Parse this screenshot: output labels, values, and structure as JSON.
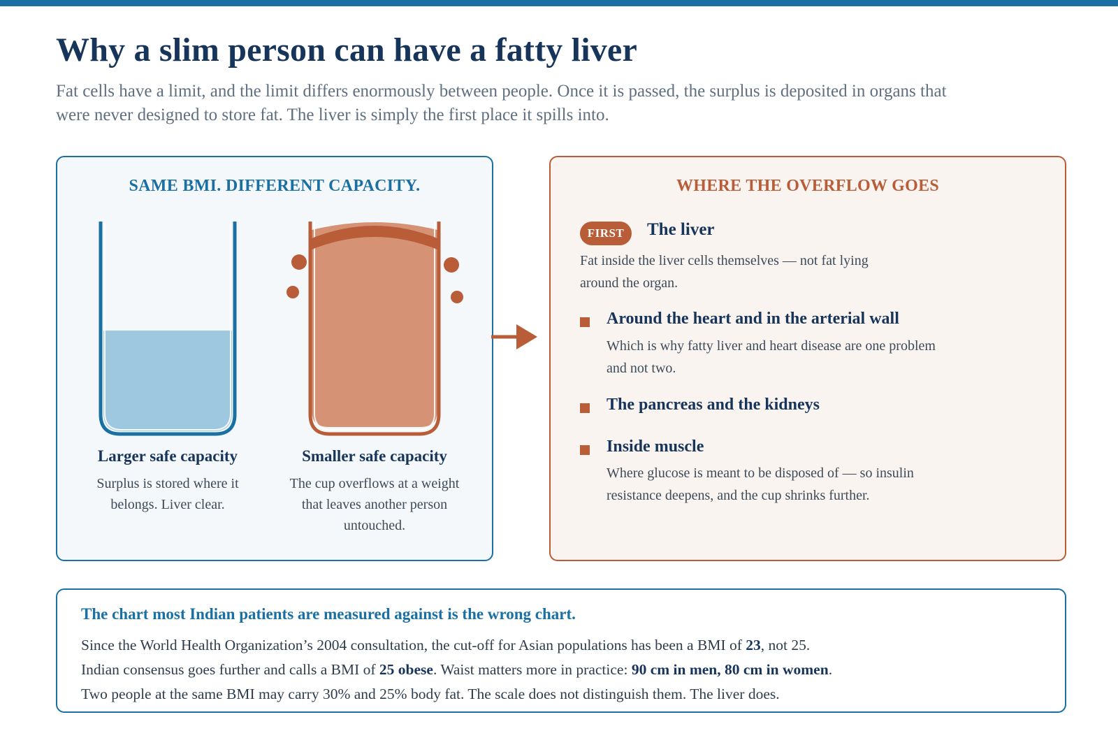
{
  "title": "Why a slim person can have a fatty liver",
  "subtitle": "Fat cells have a limit, and the limit differs enormously between people. Once it is passed, the surplus is deposited in organs that were never designed to store fat. The liver is simply the first place it spills into.",
  "left_panel": {
    "heading": "SAME BMI. DIFFERENT CAPACITY.",
    "cups": [
      {
        "label": "Larger safe capacity",
        "description": "Surplus is stored where it belongs. Liver clear.",
        "fill_fraction": 0.48
      },
      {
        "label": "Smaller safe capacity",
        "description": "The cup overflows at a weight that leaves another person untouched.",
        "fill_fraction": 1.0
      }
    ]
  },
  "right_panel": {
    "heading": "WHERE THE OVERFLOW GOES",
    "first": {
      "badge": "FIRST",
      "title": "The liver",
      "description": "Fat inside the liver cells themselves — not fat lying around the organ."
    },
    "items": [
      {
        "title": "Around the heart and in the arterial wall",
        "description": "Which is why fatty liver and heart disease are one problem and not two."
      },
      {
        "title": "The pancreas and the kidneys",
        "description": ""
      },
      {
        "title": "Inside muscle",
        "description": "Where glucose is meant to be disposed of — so insulin resistance deepens, and the cup shrinks further."
      }
    ]
  },
  "bottom_panel": {
    "heading": "The chart most Indian patients are measured against is the wrong chart.",
    "line1_a": "Since the World Health Organization’s 2004 consultation, the cut-off for Asian populations has been a BMI of ",
    "line1_bold": "23",
    "line1_b": ", not 25.",
    "line2_a": "Indian consensus goes further and calls a BMI of ",
    "line2_bold1": "25 obese",
    "line2_b": ". Waist matters more in practice: ",
    "line2_bold2": "90 cm in men, 80 cm in women",
    "line2_c": ".",
    "line3": "Two people at the same BMI may carry 30% and 25% body fat. The scale does not distinguish them. The liver does."
  },
  "colors": {
    "navy": "#17355a",
    "blue": "#1a6fa3",
    "light_blue_fill": "#9dc8df",
    "rust": "#b95c38",
    "salmon_fill": "#d69274",
    "left_panel_bg": "#f4f8fb",
    "right_panel_bg": "#faf4f1"
  },
  "icons": [
    "cup-icon",
    "overflowing-cup-icon",
    "arrow-right-icon",
    "square-bullet-icon"
  ]
}
